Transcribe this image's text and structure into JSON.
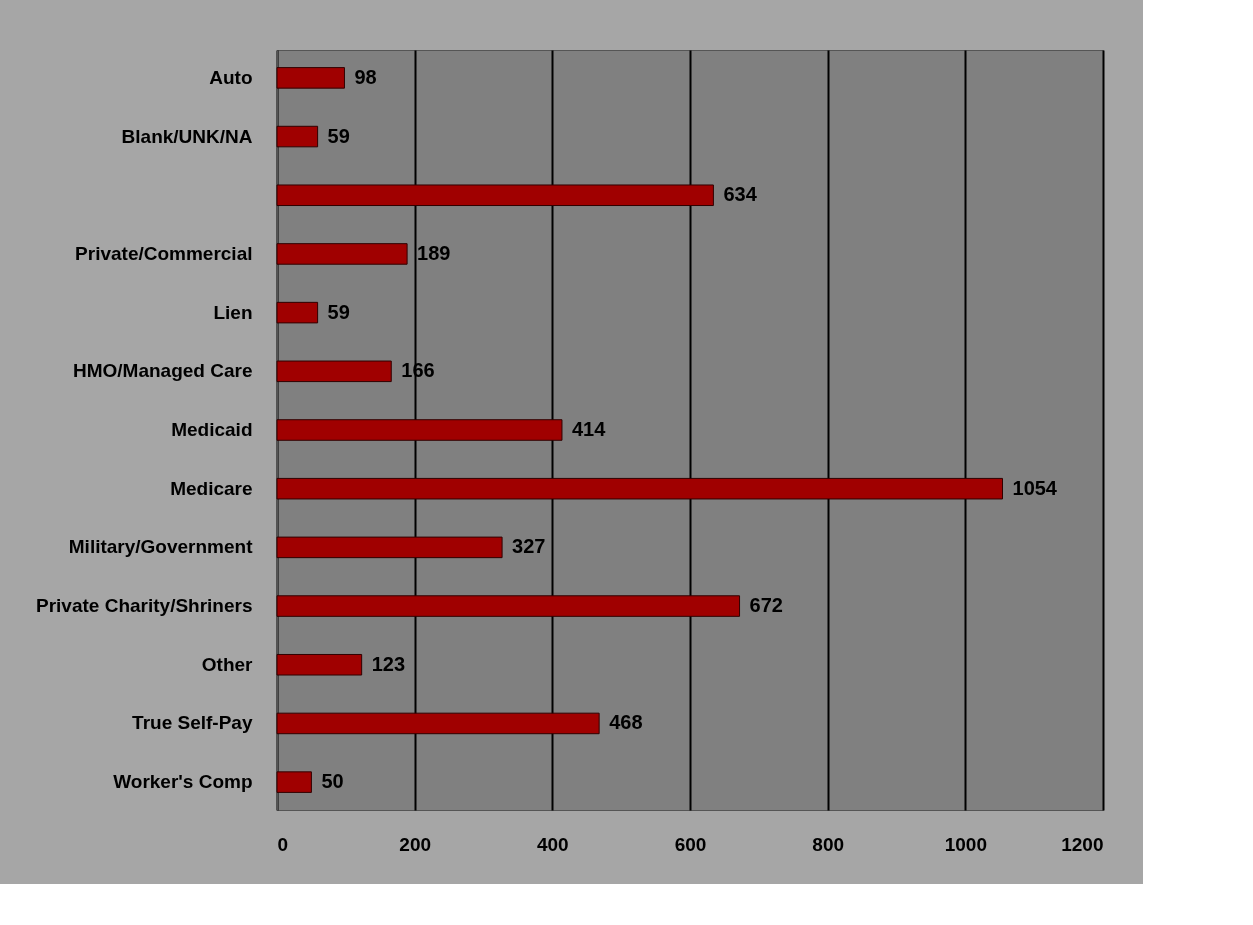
{
  "chart_data": {
    "type": "bar",
    "orientation": "horizontal",
    "categories": [
      "Auto",
      "Blank/UNK/NA",
      null,
      "Private/Commercial",
      "Lien",
      "HMO/Managed Care",
      "Medicaid",
      "Medicare",
      "Military/Government",
      "Private Charity/Shriners",
      "Other",
      "True Self-Pay",
      "Worker's Comp"
    ],
    "values": [
      98,
      59,
      634,
      189,
      59,
      166,
      414,
      1054,
      327,
      672,
      123,
      468,
      50
    ],
    "color": "#a00000",
    "xlim": [
      0,
      1200
    ],
    "xticks": [
      0,
      200,
      400,
      600,
      800,
      1000,
      1200
    ],
    "grid": "x",
    "data_labels": true
  }
}
